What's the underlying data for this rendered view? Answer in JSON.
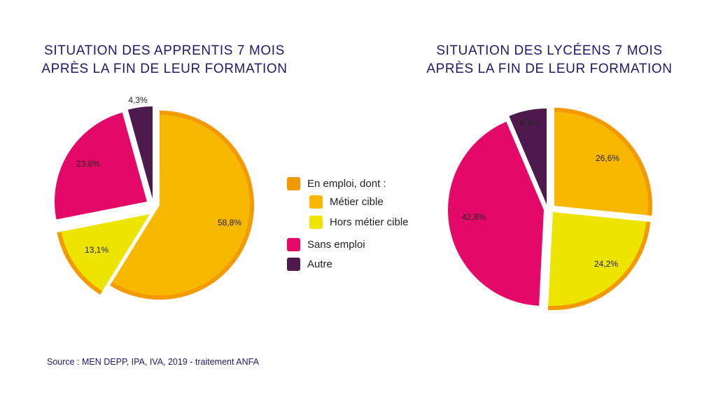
{
  "colors": {
    "emploi": "#f29a00",
    "metier_cible": "#f9b800",
    "hors_metier": "#ede400",
    "sans_emploi": "#e40868",
    "autre": "#4e1a4e",
    "title": "#1d1a6b"
  },
  "chart_data": [
    {
      "type": "pie",
      "title_lines": [
        "SITUATION DES APPRENTIS 7 MOIS",
        "APRÈS LA FIN DE LEUR FORMATION"
      ],
      "slices": [
        {
          "name": "Métier cible",
          "value": 58.8,
          "label": "58,8%",
          "color_key": "metier_cible",
          "group": "emploi"
        },
        {
          "name": "Hors métier cible",
          "value": 13.1,
          "label": "13,1%",
          "color_key": "hors_metier",
          "group": "emploi"
        },
        {
          "name": "Sans emploi",
          "value": 23.8,
          "label": "23,8%",
          "color_key": "sans_emploi",
          "group": "sans_emploi"
        },
        {
          "name": "Autre",
          "value": 4.3,
          "label": "4,3%",
          "color_key": "autre",
          "group": "autre"
        }
      ]
    },
    {
      "type": "pie",
      "title_lines": [
        "SITUATION DES LYCÉENS 7 MOIS",
        "APRÈS LA FIN DE LEUR FORMATION"
      ],
      "slices": [
        {
          "name": "Métier cible",
          "value": 26.6,
          "label": "26,6%",
          "color_key": "metier_cible",
          "group": "emploi"
        },
        {
          "name": "Hors métier cible",
          "value": 24.2,
          "label": "24,2%",
          "color_key": "hors_metier",
          "group": "emploi"
        },
        {
          "name": "Sans emploi",
          "value": 42.8,
          "label": "42,8%",
          "color_key": "sans_emploi",
          "group": "sans_emploi"
        },
        {
          "name": "Autre",
          "value": 6.4,
          "label": "6,4%",
          "color_key": "autre",
          "group": "autre"
        }
      ]
    }
  ],
  "legend": {
    "items": [
      {
        "label": "En emploi, dont :",
        "color_key": "emploi"
      },
      {
        "label": "Métier cible",
        "color_key": "metier_cible"
      },
      {
        "label": "Hors métier cible",
        "color_key": "hors_metier"
      },
      {
        "label": "Sans emploi",
        "color_key": "sans_emploi"
      },
      {
        "label": "Autre",
        "color_key": "autre"
      }
    ]
  },
  "source": "Source : MEN DEPP, IPA, IVA, 2019 - traitement ANFA"
}
